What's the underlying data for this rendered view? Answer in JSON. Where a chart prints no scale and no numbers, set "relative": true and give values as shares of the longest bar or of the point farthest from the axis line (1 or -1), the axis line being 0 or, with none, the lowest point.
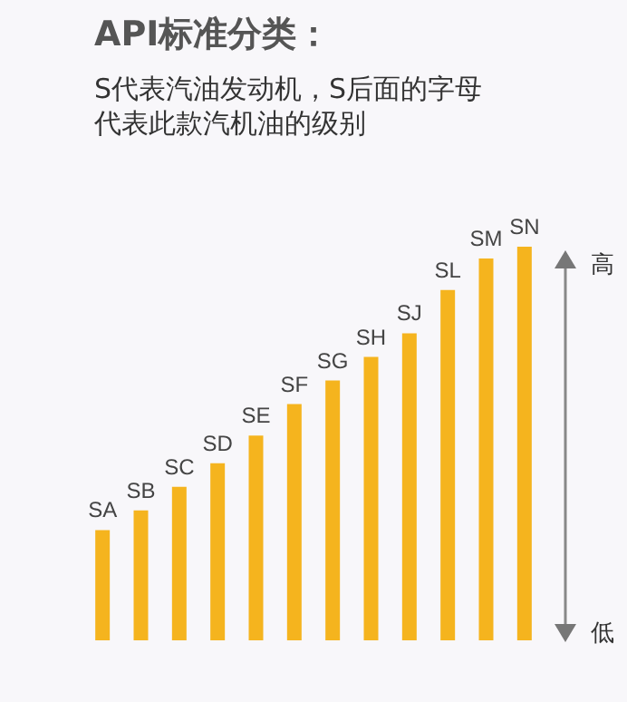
{
  "chart_data": {
    "type": "bar",
    "title": "API标准分类：",
    "subtitle": "S代表汽油发动机，S后面的字母代表此款汽机油的级别",
    "relative": true,
    "categories": [
      "SA",
      "SB",
      "SC",
      "SD",
      "SE",
      "SF",
      "SG",
      "SH",
      "SJ",
      "SL",
      "SM",
      "SN"
    ],
    "values": [
      0.28,
      0.33,
      0.39,
      0.45,
      0.52,
      0.6,
      0.66,
      0.72,
      0.78,
      0.89,
      0.97,
      1
    ],
    "color": "#f5b41e",
    "annotations": [
      "高",
      "低"
    ]
  }
}
